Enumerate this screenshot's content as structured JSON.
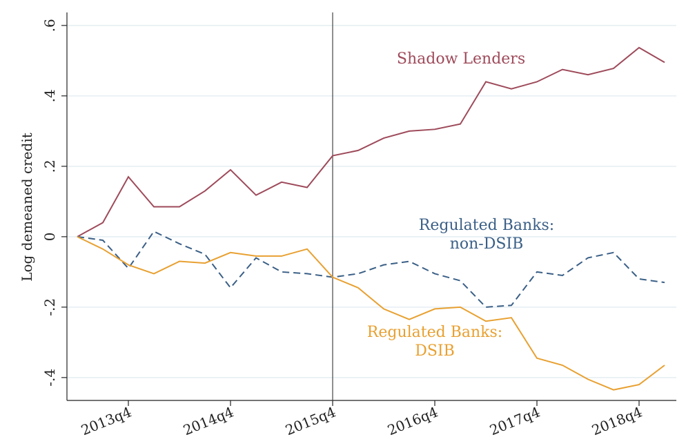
{
  "chart_data": {
    "type": "line",
    "y_label": "Log demeaned credit",
    "categories": [
      null,
      null,
      "2013q4",
      null,
      null,
      null,
      "2014q4",
      null,
      null,
      null,
      "2015q4",
      null,
      null,
      null,
      "2016q4",
      null,
      null,
      null,
      "2017q4",
      null,
      null,
      null,
      "2018q4",
      null
    ],
    "vline_at": "2015q4",
    "ylim": [
      -0.465,
      0.637
    ],
    "yticks": [
      {
        "value": -0.4,
        "label": "-.4"
      },
      {
        "value": -0.2,
        "label": "-.2"
      },
      0,
      {
        "value": 0.2,
        "label": ".2"
      },
      {
        "value": 0.4,
        "label": ".4"
      },
      {
        "value": 0.6,
        "label": ".6"
      }
    ],
    "grid": true,
    "series": [
      {
        "label": [
          "Shadow Lenders"
        ],
        "color": "#9e4a5a",
        "dash": false,
        "values": [
          0,
          0.04,
          0.17,
          0.085,
          0.085,
          0.13,
          0.19,
          0.118,
          0.155,
          0.14,
          0.23,
          0.245,
          0.28,
          0.3,
          0.305,
          0.32,
          0.44,
          0.42,
          0.44,
          0.475,
          0.46,
          0.478,
          0.537,
          0.495
        ]
      },
      {
        "label": [
          "Regulated Banks:",
          "non-DSIB"
        ],
        "color": "#3a5f86",
        "dash": true,
        "values": [
          0,
          -0.01,
          -0.09,
          0.015,
          -0.02,
          -0.05,
          -0.145,
          -0.06,
          -0.1,
          -0.105,
          -0.115,
          -0.105,
          -0.08,
          -0.07,
          -0.105,
          -0.125,
          -0.2,
          -0.195,
          -0.1,
          -0.11,
          -0.06,
          -0.045,
          -0.12,
          -0.13
        ]
      },
      {
        "label": [
          "Regulated Banks:",
          "DSIB"
        ],
        "color": "#e8a030",
        "dash": false,
        "values": [
          0,
          -0.035,
          -0.08,
          -0.105,
          -0.07,
          -0.075,
          -0.045,
          -0.055,
          -0.055,
          -0.035,
          -0.115,
          -0.145,
          -0.205,
          -0.235,
          -0.205,
          -0.2,
          -0.24,
          -0.23,
          -0.345,
          -0.365,
          -0.405,
          -0.435,
          -0.42,
          -0.365
        ]
      }
    ]
  }
}
